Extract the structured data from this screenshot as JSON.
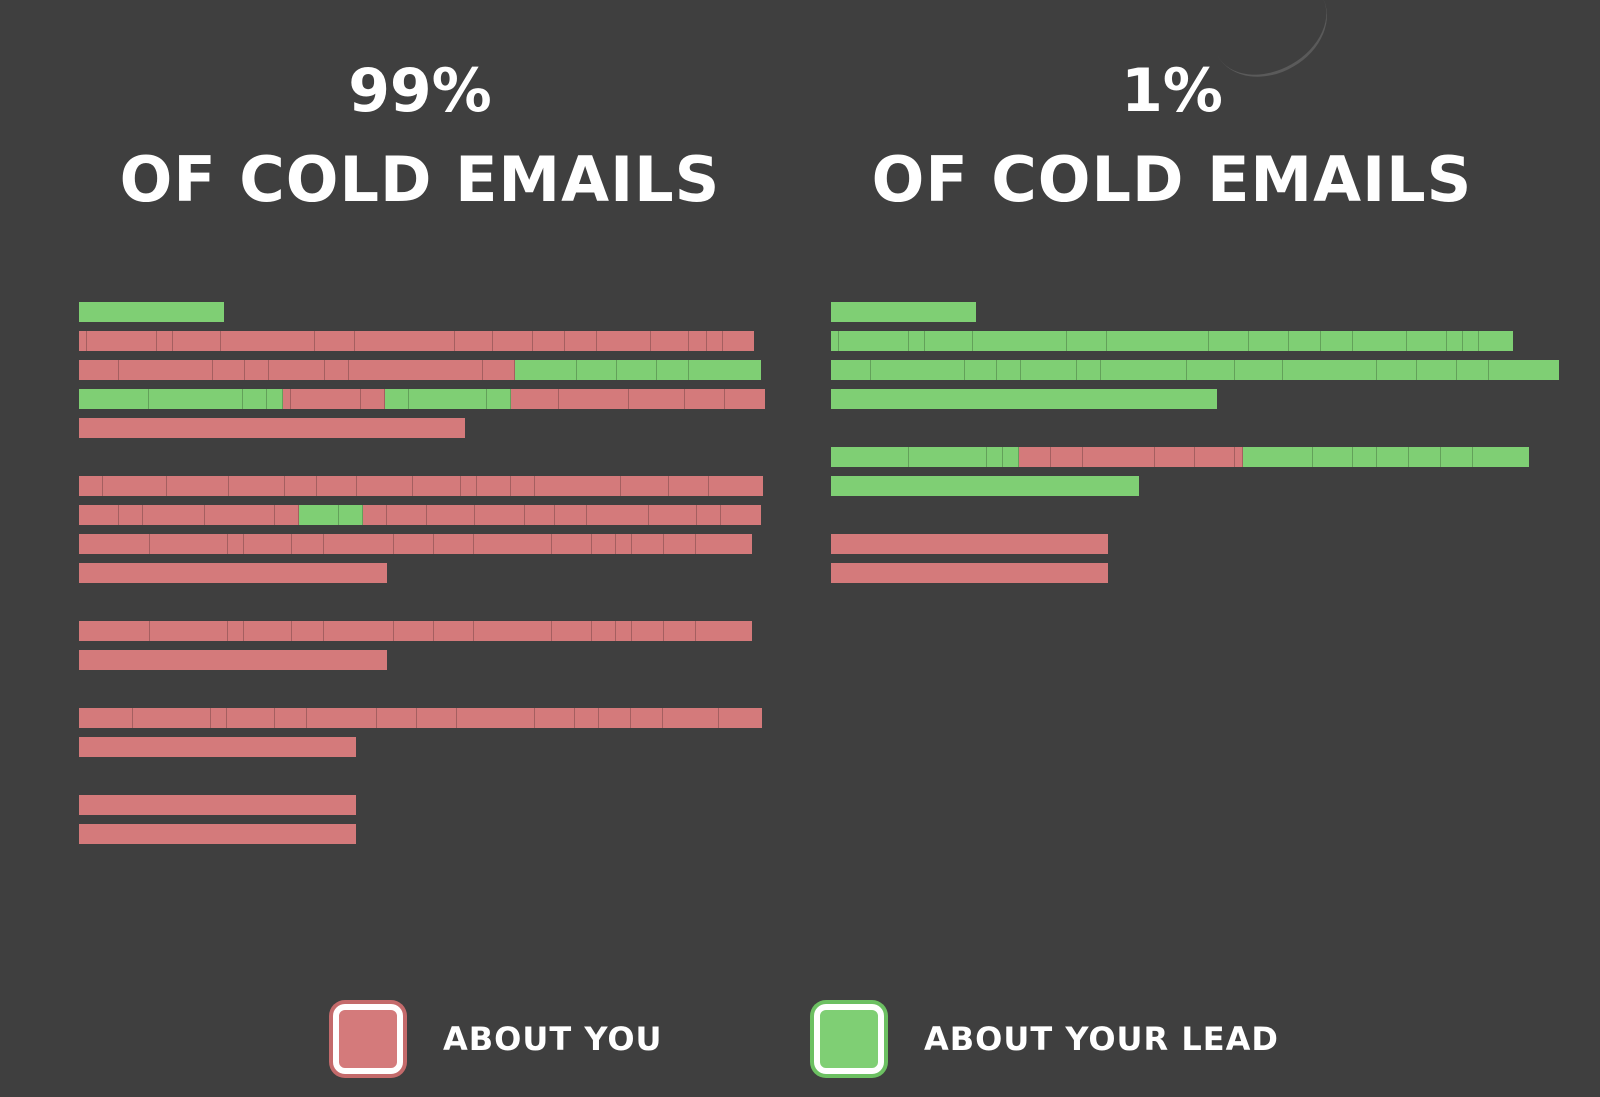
{
  "colors": {
    "background": "#3f3f3f",
    "about_you": "#d47a7b",
    "about_lead": "#7fcf74",
    "about_you_border": "#c46a6b",
    "about_lead_border": "#6cc062"
  },
  "left_panel": {
    "percent": "99%",
    "subtitle": "OF COLD EMAILS",
    "lines": [
      {
        "y": 0,
        "segs": [
          [
            "g",
            145
          ]
        ]
      },
      {
        "y": 29,
        "segs": [
          [
            "r",
            8
          ],
          [
            "r",
            70
          ],
          [
            "r",
            16
          ],
          [
            "r",
            48
          ],
          [
            "r",
            94
          ],
          [
            "r",
            40
          ],
          [
            "r",
            100
          ],
          [
            "r",
            38
          ],
          [
            "r",
            40
          ],
          [
            "r",
            32
          ],
          [
            "r",
            32
          ],
          [
            "r",
            54
          ],
          [
            "r",
            38
          ],
          [
            "r",
            18
          ],
          [
            "r",
            16
          ],
          [
            "r",
            31
          ]
        ]
      },
      {
        "y": 58,
        "segs": [
          [
            "r",
            40
          ],
          [
            "r",
            94
          ],
          [
            "r",
            32
          ],
          [
            "r",
            24
          ],
          [
            "r",
            56
          ],
          [
            "r",
            24
          ],
          [
            "r",
            134
          ],
          [
            "r",
            32
          ],
          [
            "g",
            62
          ],
          [
            "g",
            40
          ],
          [
            "g",
            40
          ],
          [
            "g",
            32
          ],
          [
            "g",
            72
          ]
        ]
      },
      {
        "y": 87,
        "segs": [
          [
            "g",
            70
          ],
          [
            "g",
            94
          ],
          [
            "g",
            24
          ],
          [
            "g",
            16
          ],
          [
            "r",
            8
          ],
          [
            "r",
            70
          ],
          [
            "r",
            24
          ],
          [
            "g",
            24
          ],
          [
            "g",
            78
          ],
          [
            "g",
            24
          ],
          [
            "r",
            48
          ],
          [
            "r",
            70
          ],
          [
            "r",
            56
          ],
          [
            "r",
            40
          ],
          [
            "r",
            40
          ]
        ]
      },
      {
        "y": 116,
        "segs": [
          [
            "r",
            386
          ]
        ]
      },
      {
        "y": 174,
        "segs": [
          [
            "r",
            24
          ],
          [
            "r",
            64
          ],
          [
            "r",
            62
          ],
          [
            "r",
            56
          ],
          [
            "r",
            32
          ],
          [
            "r",
            40
          ],
          [
            "r",
            56
          ],
          [
            "r",
            48
          ],
          [
            "r",
            16
          ],
          [
            "r",
            34
          ],
          [
            "r",
            24
          ],
          [
            "r",
            86
          ],
          [
            "r",
            48
          ],
          [
            "r",
            40
          ],
          [
            "r",
            54
          ]
        ]
      },
      {
        "y": 203,
        "segs": [
          [
            "r",
            40
          ],
          [
            "r",
            24
          ],
          [
            "r",
            62
          ],
          [
            "r",
            70
          ],
          [
            "r",
            24
          ],
          [
            "g",
            40
          ],
          [
            "g",
            24
          ],
          [
            "r",
            24
          ],
          [
            "r",
            40
          ],
          [
            "r",
            48
          ],
          [
            "r",
            50
          ],
          [
            "r",
            30
          ],
          [
            "r",
            32
          ],
          [
            "r",
            62
          ],
          [
            "r",
            48
          ],
          [
            "r",
            24
          ],
          [
            "r",
            40
          ]
        ]
      },
      {
        "y": 232,
        "segs": [
          [
            "r",
            71
          ],
          [
            "r",
            78
          ],
          [
            "r",
            16
          ],
          [
            "r",
            48
          ],
          [
            "r",
            32
          ],
          [
            "r",
            70
          ],
          [
            "r",
            40
          ],
          [
            "r",
            40
          ],
          [
            "r",
            78
          ],
          [
            "r",
            40
          ],
          [
            "r",
            24
          ],
          [
            "r",
            16
          ],
          [
            "r",
            32
          ],
          [
            "r",
            32
          ],
          [
            "r",
            56
          ]
        ]
      },
      {
        "y": 261,
        "segs": [
          [
            "r",
            308
          ]
        ]
      },
      {
        "y": 319,
        "segs": [
          [
            "r",
            71
          ],
          [
            "r",
            78
          ],
          [
            "r",
            16
          ],
          [
            "r",
            48
          ],
          [
            "r",
            32
          ],
          [
            "r",
            70
          ],
          [
            "r",
            40
          ],
          [
            "r",
            40
          ],
          [
            "r",
            78
          ],
          [
            "r",
            40
          ],
          [
            "r",
            24
          ],
          [
            "r",
            16
          ],
          [
            "r",
            32
          ],
          [
            "r",
            32
          ],
          [
            "r",
            56
          ]
        ]
      },
      {
        "y": 348,
        "segs": [
          [
            "r",
            308
          ]
        ]
      },
      {
        "y": 406,
        "segs": [
          [
            "r",
            54
          ],
          [
            "r",
            78
          ],
          [
            "r",
            16
          ],
          [
            "r",
            48
          ],
          [
            "r",
            32
          ],
          [
            "r",
            70
          ],
          [
            "r",
            40
          ],
          [
            "r",
            40
          ],
          [
            "r",
            78
          ],
          [
            "r",
            40
          ],
          [
            "r",
            24
          ],
          [
            "r",
            32
          ],
          [
            "r",
            32
          ],
          [
            "r",
            56
          ],
          [
            "r",
            43
          ]
        ]
      },
      {
        "y": 435,
        "segs": [
          [
            "r",
            277
          ]
        ]
      },
      {
        "y": 493,
        "segs": [
          [
            "r",
            277
          ]
        ]
      },
      {
        "y": 522,
        "segs": [
          [
            "r",
            277
          ]
        ]
      }
    ]
  },
  "right_panel": {
    "percent": "1%",
    "subtitle": "OF COLD EMAILS",
    "lines": [
      {
        "y": 0,
        "segs": [
          [
            "g",
            145
          ]
        ]
      },
      {
        "y": 29,
        "segs": [
          [
            "g",
            8
          ],
          [
            "g",
            70
          ],
          [
            "g",
            16
          ],
          [
            "g",
            48
          ],
          [
            "g",
            94
          ],
          [
            "g",
            40
          ],
          [
            "g",
            102
          ],
          [
            "g",
            40
          ],
          [
            "g",
            40
          ],
          [
            "g",
            32
          ],
          [
            "g",
            32
          ],
          [
            "g",
            54
          ],
          [
            "g",
            40
          ],
          [
            "g",
            16
          ],
          [
            "g",
            16
          ],
          [
            "g",
            34
          ]
        ]
      },
      {
        "y": 58,
        "segs": [
          [
            "g",
            40
          ],
          [
            "g",
            94
          ],
          [
            "g",
            32
          ],
          [
            "g",
            24
          ],
          [
            "g",
            56
          ],
          [
            "g",
            24
          ],
          [
            "g",
            86
          ],
          [
            "g",
            48
          ],
          [
            "g",
            48
          ],
          [
            "g",
            94
          ],
          [
            "g",
            40
          ],
          [
            "g",
            40
          ],
          [
            "g",
            32
          ],
          [
            "g",
            70
          ]
        ]
      },
      {
        "y": 87,
        "segs": [
          [
            "g",
            386
          ]
        ]
      },
      {
        "y": 145,
        "segs": [
          [
            "g",
            78
          ],
          [
            "g",
            78
          ],
          [
            "g",
            16
          ],
          [
            "g",
            16
          ],
          [
            "r",
            32
          ],
          [
            "r",
            32
          ],
          [
            "r",
            72
          ],
          [
            "r",
            40
          ],
          [
            "r",
            40
          ],
          [
            "r",
            8
          ],
          [
            "g",
            70
          ],
          [
            "g",
            40
          ],
          [
            "g",
            24
          ],
          [
            "g",
            32
          ],
          [
            "g",
            32
          ],
          [
            "g",
            32
          ],
          [
            "g",
            56
          ]
        ]
      },
      {
        "y": 174,
        "segs": [
          [
            "g",
            308
          ]
        ]
      },
      {
        "y": 232,
        "segs": [
          [
            "r",
            277
          ]
        ]
      },
      {
        "y": 261,
        "segs": [
          [
            "r",
            277
          ]
        ]
      }
    ]
  },
  "legend": {
    "about_you_label": "ABOUT YOU",
    "about_lead_label": "ABOUT YOUR LEAD"
  }
}
